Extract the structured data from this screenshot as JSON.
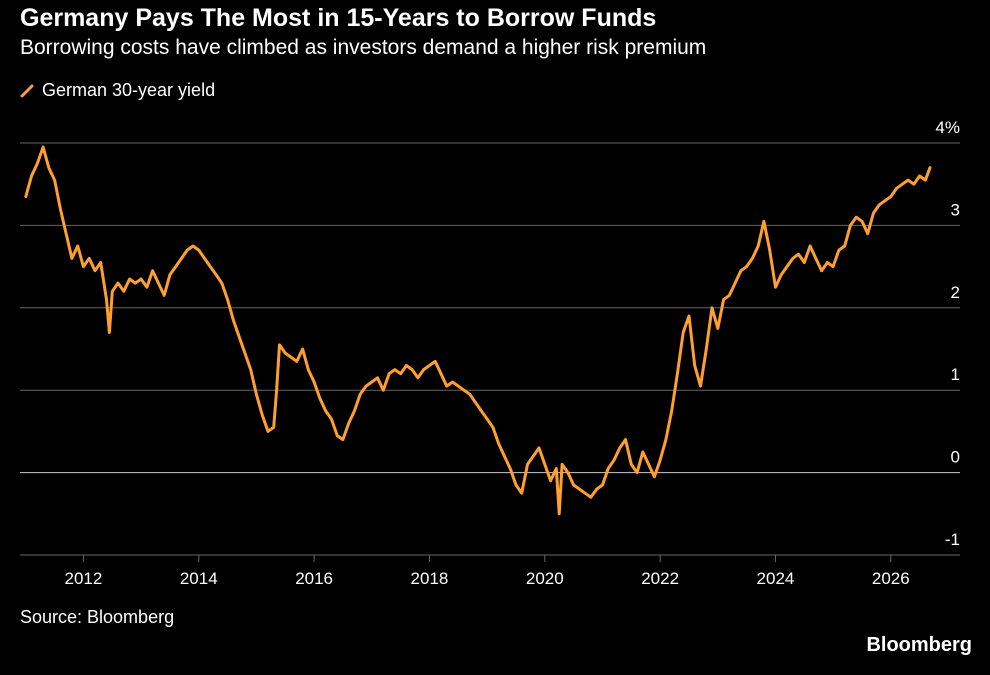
{
  "title": "Germany Pays The Most in 15-Years to Borrow Funds",
  "subtitle": "Borrowing costs have climbed as investors demand a higher risk premium",
  "source": "Source: Bloomberg",
  "brand": "Bloomberg",
  "colors": {
    "background": "#000000",
    "line": "#ff9f2e",
    "grid": "#666666",
    "text": "#ffffff"
  },
  "chart_data": {
    "type": "line",
    "title": "Germany Pays The Most in 15-Years to Borrow Funds",
    "subtitle": "Borrowing costs have climbed as investors demand a higher risk premium",
    "xlabel": "",
    "ylabel": "",
    "legend_placement": "top-left",
    "grid": true,
    "xlim": [
      2010.9,
      2027.2
    ],
    "ylim": [
      -1,
      4
    ],
    "y_ticks": [
      {
        "value": 4,
        "label": "4%"
      },
      {
        "value": 3,
        "label": "3"
      },
      {
        "value": 2,
        "label": "2"
      },
      {
        "value": 1,
        "label": "1"
      },
      {
        "value": 0,
        "label": "0"
      },
      {
        "value": -1,
        "label": "-1"
      }
    ],
    "x_ticks": [
      {
        "value": 2012,
        "label": "2012"
      },
      {
        "value": 2014,
        "label": "2014"
      },
      {
        "value": 2016,
        "label": "2016"
      },
      {
        "value": 2018,
        "label": "2018"
      },
      {
        "value": 2020,
        "label": "2020"
      },
      {
        "value": 2022,
        "label": "2022"
      },
      {
        "value": 2024,
        "label": "2024"
      },
      {
        "value": 2026,
        "label": "2026"
      }
    ],
    "series": [
      {
        "name": "German 30-year yield",
        "x": [
          2011.0,
          2011.1,
          2011.2,
          2011.3,
          2011.4,
          2011.5,
          2011.6,
          2011.7,
          2011.8,
          2011.9,
          2012.0,
          2012.1,
          2012.2,
          2012.3,
          2012.4,
          2012.45,
          2012.5,
          2012.6,
          2012.7,
          2012.8,
          2012.9,
          2013.0,
          2013.1,
          2013.2,
          2013.3,
          2013.4,
          2013.5,
          2013.6,
          2013.7,
          2013.8,
          2013.9,
          2014.0,
          2014.1,
          2014.2,
          2014.3,
          2014.4,
          2014.5,
          2014.6,
          2014.7,
          2014.8,
          2014.9,
          2015.0,
          2015.1,
          2015.2,
          2015.3,
          2015.35,
          2015.4,
          2015.5,
          2015.6,
          2015.7,
          2015.8,
          2015.9,
          2016.0,
          2016.1,
          2016.2,
          2016.3,
          2016.4,
          2016.5,
          2016.6,
          2016.7,
          2016.8,
          2016.9,
          2017.0,
          2017.1,
          2017.2,
          2017.3,
          2017.4,
          2017.5,
          2017.6,
          2017.7,
          2017.8,
          2017.9,
          2018.0,
          2018.1,
          2018.2,
          2018.3,
          2018.4,
          2018.5,
          2018.6,
          2018.7,
          2018.8,
          2018.9,
          2019.0,
          2019.1,
          2019.2,
          2019.3,
          2019.4,
          2019.5,
          2019.6,
          2019.7,
          2019.8,
          2019.9,
          2020.0,
          2020.1,
          2020.2,
          2020.25,
          2020.3,
          2020.4,
          2020.5,
          2020.6,
          2020.7,
          2020.8,
          2020.9,
          2021.0,
          2021.1,
          2021.2,
          2021.3,
          2021.4,
          2021.5,
          2021.6,
          2021.7,
          2021.8,
          2021.9,
          2022.0,
          2022.1,
          2022.2,
          2022.3,
          2022.4,
          2022.5,
          2022.6,
          2022.7,
          2022.8,
          2022.9,
          2023.0,
          2023.1,
          2023.2,
          2023.3,
          2023.4,
          2023.5,
          2023.6,
          2023.7,
          2023.8,
          2023.9,
          2024.0,
          2024.1,
          2024.2,
          2024.3,
          2024.4,
          2024.5,
          2024.6,
          2024.7,
          2024.8,
          2024.9,
          2025.0,
          2025.1,
          2025.2,
          2025.3,
          2025.4,
          2025.5,
          2025.6,
          2025.7,
          2025.8,
          2025.9,
          2026.0,
          2026.1,
          2026.2,
          2026.3,
          2026.4,
          2026.5,
          2026.6,
          2026.68
        ],
        "values": [
          3.35,
          3.6,
          3.75,
          3.95,
          3.7,
          3.55,
          3.2,
          2.9,
          2.6,
          2.75,
          2.5,
          2.6,
          2.45,
          2.55,
          2.1,
          1.7,
          2.2,
          2.3,
          2.2,
          2.35,
          2.3,
          2.35,
          2.25,
          2.45,
          2.3,
          2.15,
          2.4,
          2.5,
          2.6,
          2.7,
          2.75,
          2.7,
          2.6,
          2.5,
          2.4,
          2.3,
          2.1,
          1.85,
          1.65,
          1.45,
          1.25,
          0.95,
          0.7,
          0.5,
          0.55,
          1.0,
          1.55,
          1.45,
          1.4,
          1.35,
          1.5,
          1.25,
          1.1,
          0.9,
          0.75,
          0.65,
          0.45,
          0.4,
          0.6,
          0.75,
          0.95,
          1.05,
          1.1,
          1.15,
          1.0,
          1.2,
          1.25,
          1.2,
          1.3,
          1.25,
          1.15,
          1.25,
          1.3,
          1.35,
          1.2,
          1.05,
          1.1,
          1.05,
          1.0,
          0.95,
          0.85,
          0.75,
          0.65,
          0.55,
          0.35,
          0.2,
          0.05,
          -0.15,
          -0.25,
          0.1,
          0.2,
          0.3,
          0.1,
          -0.1,
          0.05,
          -0.5,
          0.1,
          0.0,
          -0.15,
          -0.2,
          -0.25,
          -0.3,
          -0.2,
          -0.15,
          0.05,
          0.15,
          0.3,
          0.4,
          0.1,
          0.0,
          0.25,
          0.1,
          -0.05,
          0.15,
          0.4,
          0.75,
          1.2,
          1.7,
          1.9,
          1.3,
          1.05,
          1.5,
          2.0,
          1.75,
          2.1,
          2.15,
          2.3,
          2.45,
          2.5,
          2.6,
          2.75,
          3.05,
          2.7,
          2.25,
          2.4,
          2.5,
          2.6,
          2.65,
          2.55,
          2.75,
          2.6,
          2.45,
          2.55,
          2.5,
          2.7,
          2.75,
          3.0,
          3.1,
          3.05,
          2.9,
          3.15,
          3.25,
          3.3,
          3.35,
          3.45,
          3.5,
          3.55,
          3.5,
          3.6,
          3.55,
          3.7
        ]
      }
    ]
  }
}
